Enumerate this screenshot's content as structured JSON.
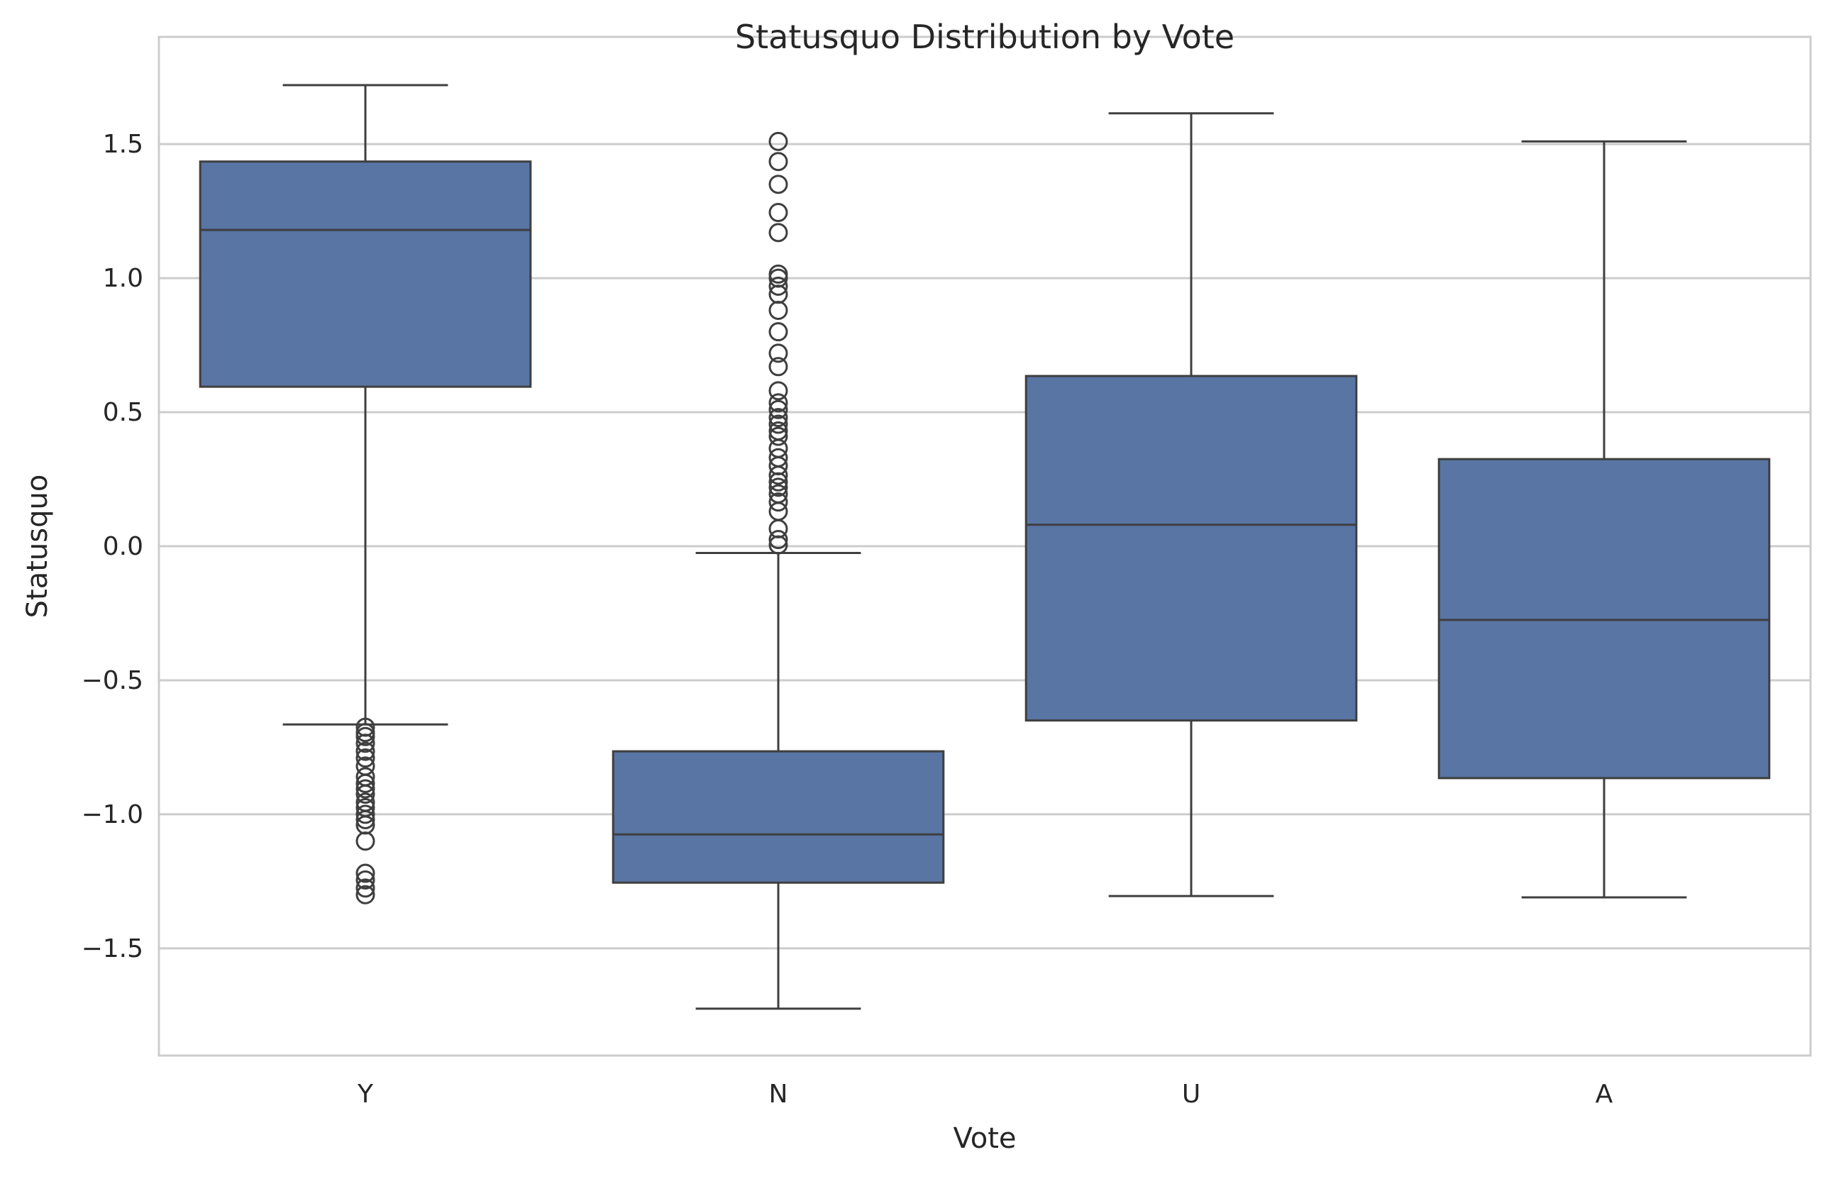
{
  "chart_data": {
    "type": "boxplot",
    "title": "Statusquo Distribution by Vote",
    "xlabel": "Vote",
    "ylabel": "Statusquo",
    "ylim": [
      -1.9,
      1.9
    ],
    "yticks": [
      -1.5,
      -1.0,
      -0.5,
      0.0,
      0.5,
      1.0,
      1.5
    ],
    "ytick_labels": [
      "−1.5",
      "−1.0",
      "−0.5",
      "0.0",
      "0.5",
      "1.0",
      "1.5"
    ],
    "grid": true,
    "grid_axis": "y",
    "categories": [
      "Y",
      "N",
      "U",
      "A"
    ],
    "boxes": [
      {
        "category": "Y",
        "whisker_low": -0.665,
        "q1": 0.595,
        "median": 1.18,
        "q3": 1.435,
        "whisker_high": 1.72,
        "outliers": [
          -0.675,
          -0.695,
          -0.71,
          -0.735,
          -0.765,
          -0.79,
          -0.82,
          -0.86,
          -0.885,
          -0.905,
          -0.925,
          -0.955,
          -0.975,
          -1.0,
          -1.02,
          -1.04,
          -1.1,
          -1.22,
          -1.245,
          -1.275,
          -1.3
        ]
      },
      {
        "category": "N",
        "whisker_low": -1.725,
        "q1": -1.255,
        "median": -1.075,
        "q3": -0.765,
        "whisker_high": -0.025,
        "outliers": [
          0.005,
          0.025,
          0.065,
          0.13,
          0.165,
          0.195,
          0.22,
          0.24,
          0.265,
          0.3,
          0.33,
          0.365,
          0.41,
          0.43,
          0.455,
          0.48,
          0.51,
          0.535,
          0.58,
          0.67,
          0.72,
          0.8,
          0.88,
          0.94,
          0.97,
          1.0,
          1.015,
          1.17,
          1.245,
          1.35,
          1.435,
          1.51
        ]
      },
      {
        "category": "U",
        "whisker_low": -1.305,
        "q1": -0.65,
        "median": 0.08,
        "q3": 0.635,
        "whisker_high": 1.615,
        "outliers": []
      },
      {
        "category": "A",
        "whisker_low": -1.31,
        "q1": -0.865,
        "median": -0.275,
        "q3": 0.325,
        "whisker_high": 1.51,
        "outliers": []
      }
    ],
    "colors": {
      "box_fill": "#5875a4",
      "line": "#3f3f3f",
      "grid": "#cccccc",
      "frame": "#cccccc",
      "text": "#262626",
      "background": "#ffffff"
    }
  }
}
